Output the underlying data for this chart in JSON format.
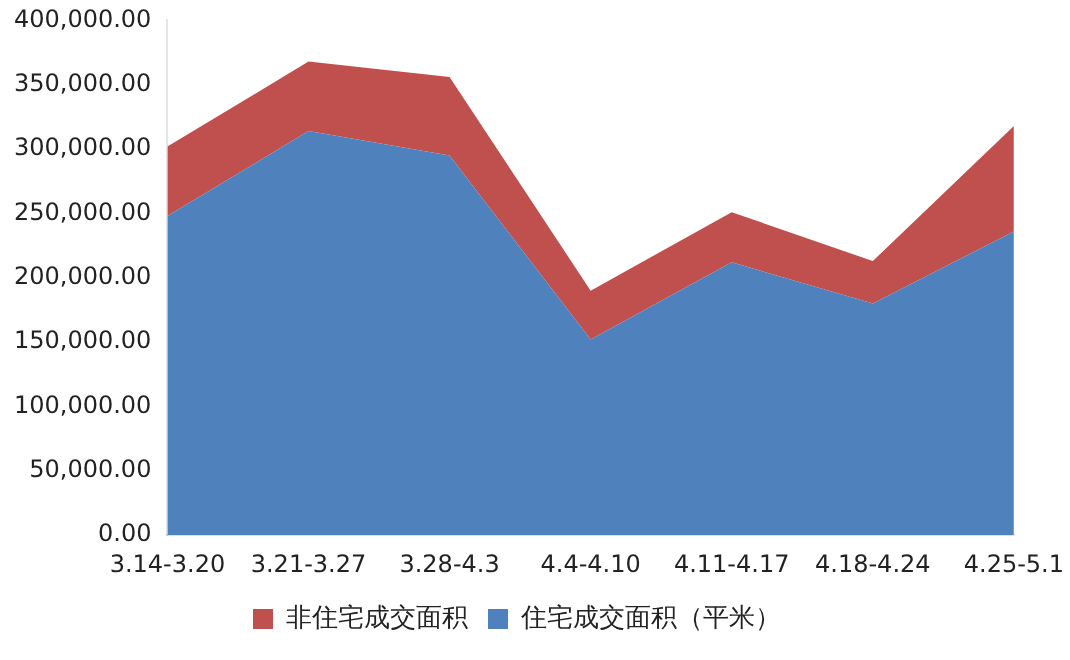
{
  "chart_data": {
    "type": "area",
    "stacked": true,
    "categories": [
      "3.14-3.20",
      "3.21-3.27",
      "3.28-4.3",
      "4.4-4.10",
      "4.11-4.17",
      "4.18-4.24",
      "4.25-5.1"
    ],
    "series": [
      {
        "name": "住宅成交面积（平米）",
        "color": "#4f81bd",
        "values": [
          248000,
          314000,
          295000,
          152000,
          212000,
          180000,
          236000
        ]
      },
      {
        "name": "非住宅成交面积",
        "color": "#c0504d",
        "values": [
          54000,
          54000,
          61000,
          38000,
          39000,
          33000,
          82000
        ]
      }
    ],
    "ylim": [
      0,
      400000
    ],
    "yticks": [
      {
        "value": 0,
        "label": "0.00"
      },
      {
        "value": 50000,
        "label": "50,000.00"
      },
      {
        "value": 100000,
        "label": "100,000.00"
      },
      {
        "value": 150000,
        "label": "150,000.00"
      },
      {
        "value": 200000,
        "label": "200,000.00"
      },
      {
        "value": 250000,
        "label": "250,000.00"
      },
      {
        "value": 300000,
        "label": "300,000.00"
      },
      {
        "value": 350000,
        "label": "350,000.00"
      },
      {
        "value": 400000,
        "label": "400,000.00"
      }
    ],
    "grid": false,
    "legend": "bottom"
  }
}
